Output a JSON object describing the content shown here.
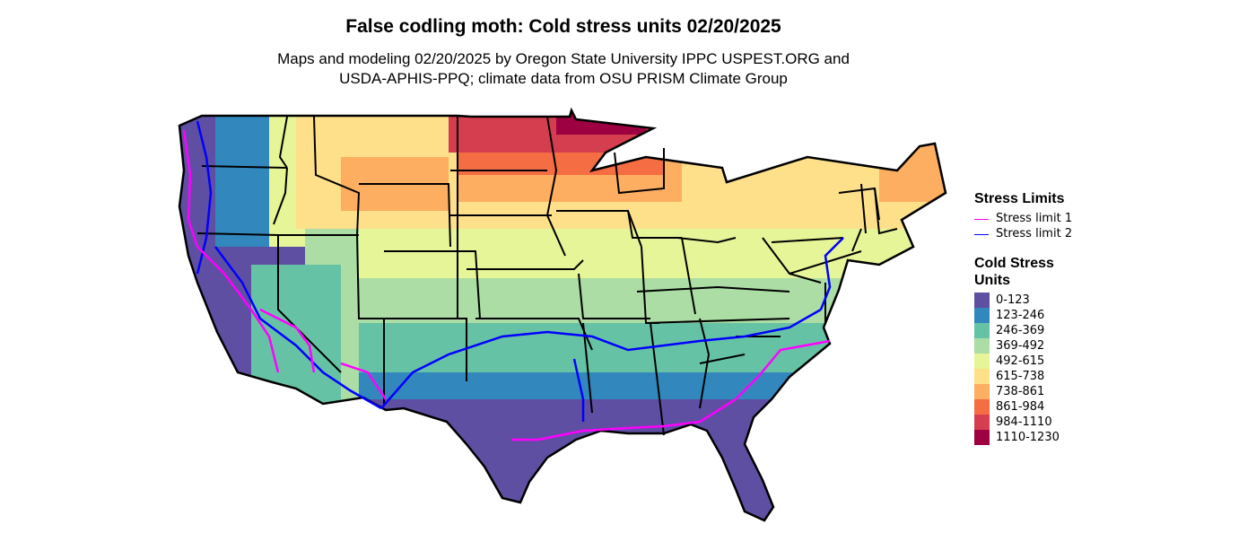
{
  "title": "False codling moth: Cold stress units 02/20/2025",
  "subtitle": {
    "line1": "Maps and modeling 02/20/2025 by Oregon State University IPPC USPEST.ORG and",
    "line2": "USDA-APHIS-PPQ; climate data from OSU PRISM Climate Group"
  },
  "legend": {
    "limits_title": "Stress Limits",
    "limits": [
      {
        "label": "Stress limit 1",
        "color": "#ff00ff"
      },
      {
        "label": "Stress limit 2",
        "color": "#0000ff"
      }
    ],
    "units_title_line1": "Cold Stress",
    "units_title_line2": "Units",
    "bins": [
      {
        "label": "0-123",
        "color": "#5e4fa2"
      },
      {
        "label": "123-246",
        "color": "#3288bd"
      },
      {
        "label": "246-369",
        "color": "#66c2a5"
      },
      {
        "label": "369-492",
        "color": "#abdda4"
      },
      {
        "label": "492-615",
        "color": "#e6f598"
      },
      {
        "label": "615-738",
        "color": "#fee08b"
      },
      {
        "label": "738-861",
        "color": "#fdae61"
      },
      {
        "label": "861-984",
        "color": "#f46d43"
      },
      {
        "label": "984-1110",
        "color": "#d53e4f"
      },
      {
        "label": "1110-1230",
        "color": "#9e0142"
      }
    ]
  }
}
